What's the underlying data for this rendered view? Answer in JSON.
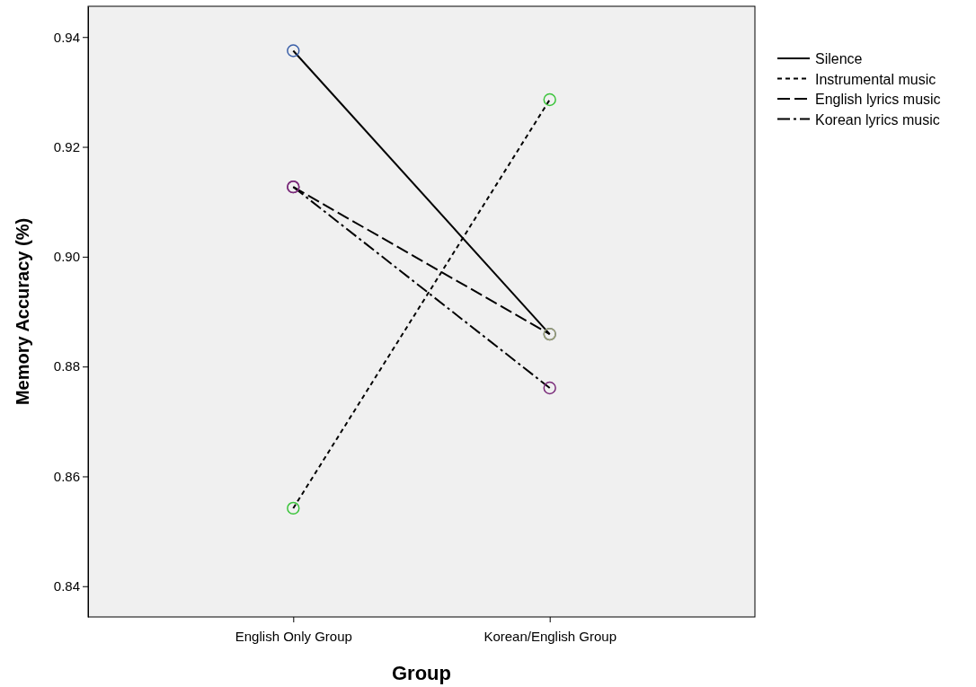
{
  "chart_data": {
    "type": "line",
    "xlabel": "Group",
    "ylabel": "Memory Accuracy (%)",
    "categories": [
      "English Only Group",
      "Korean/English Group"
    ],
    "series": [
      {
        "name": "Silence",
        "color": "#000000",
        "line_style": "solid",
        "colors": [
          "#3a5fa8",
          "#3a5fa8"
        ],
        "values": [
          0.9375,
          0.8859
        ]
      },
      {
        "name": "Instrumental music",
        "color": "#000000",
        "line_style": "dotted",
        "colors": [
          "#3cc43c",
          "#3cc43c"
        ],
        "values": [
          0.8542,
          0.9286
        ]
      },
      {
        "name": "English lyrics music",
        "color": "#000000",
        "line_style": "dashed",
        "colors": [
          "#7b2d7b",
          "#a0a070"
        ],
        "values": [
          0.9127,
          0.8859
        ]
      },
      {
        "name": "Korean lyrics music",
        "color": "#000000",
        "line_style": "dashdot",
        "colors": [
          "#7b2d7b",
          "#7b2d7b"
        ],
        "values": [
          0.9127,
          0.8761
        ]
      }
    ],
    "ylim": [
      0.8344,
      0.9456
    ],
    "yticks": [
      {
        "value": 0.84,
        "label": "0.84"
      },
      {
        "value": 0.86,
        "label": "0.86"
      },
      {
        "value": 0.88,
        "label": "0.88"
      },
      {
        "value": 0.9,
        "label": "0.90"
      },
      {
        "value": 0.92,
        "label": "0.92"
      },
      {
        "value": 0.94,
        "label": "0.94"
      }
    ],
    "marker": "circle",
    "legend": "top right",
    "grid": false
  }
}
